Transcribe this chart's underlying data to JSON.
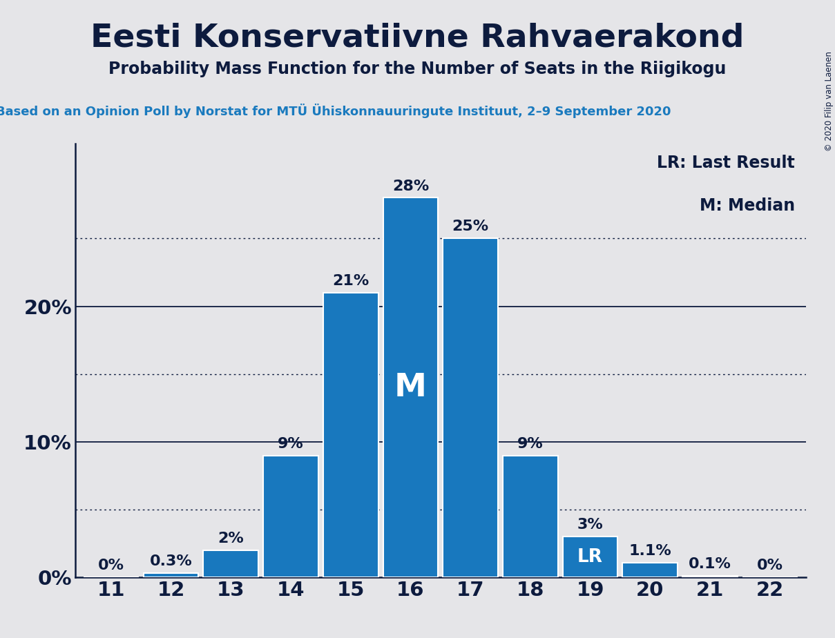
{
  "title": "Eesti Konservatiivne Rahvaerakond",
  "subtitle": "Probability Mass Function for the Number of Seats in the Riigikogu",
  "source": "Based on an Opinion Poll by Norstat for MTÜ Ühiskonnauuringute Instituut, 2–9 September 2020",
  "copyright": "© 2020 Filip van Laenen",
  "categories": [
    11,
    12,
    13,
    14,
    15,
    16,
    17,
    18,
    19,
    20,
    21,
    22
  ],
  "values": [
    0.0,
    0.3,
    2.0,
    9.0,
    21.0,
    28.0,
    25.0,
    9.0,
    3.0,
    1.1,
    0.1,
    0.0
  ],
  "bar_color": "#1878be",
  "background_color": "#e5e5e8",
  "text_color": "#0d1b3e",
  "bar_labels": [
    "0%",
    "0.3%",
    "2%",
    "9%",
    "21%",
    "28%",
    "25%",
    "9%",
    "3%",
    "1.1%",
    "0.1%",
    "0%"
  ],
  "median_bar_index": 5,
  "lr_bar_index": 8,
  "legend_lr": "LR: Last Result",
  "legend_m": "M: Median",
  "ylim": [
    0,
    32
  ],
  "yticks": [
    0,
    10,
    20
  ],
  "dotted_yticks": [
    5,
    15,
    25
  ],
  "title_fontsize": 34,
  "subtitle_fontsize": 17,
  "source_fontsize": 13,
  "axis_label_fontsize": 21,
  "bar_label_fontsize": 16,
  "legend_fontsize": 17,
  "median_label_fontsize": 34,
  "lr_label_fontsize": 19
}
